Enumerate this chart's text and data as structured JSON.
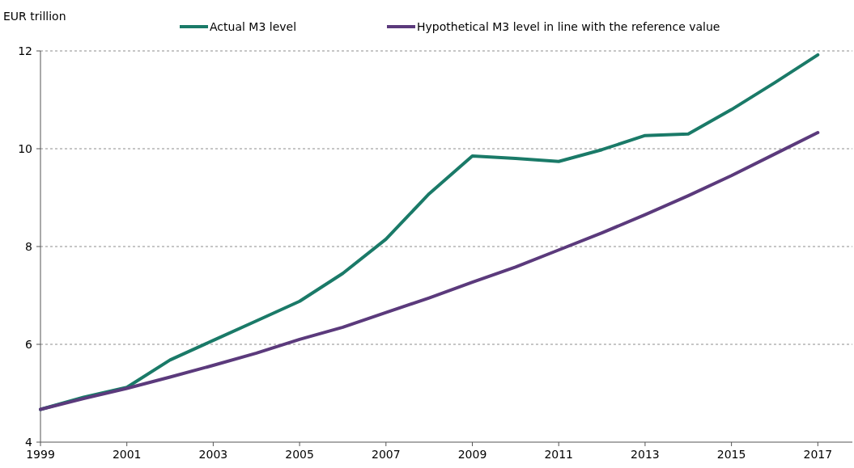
{
  "chart_data": {
    "type": "line",
    "ylabel": "EUR trillion",
    "x": [
      1999,
      2000,
      2001,
      2002,
      2003,
      2004,
      2005,
      2006,
      2007,
      2008,
      2009,
      2010,
      2011,
      2012,
      2013,
      2014,
      2015,
      2016,
      2017
    ],
    "series": [
      {
        "name": "Actual M3 level",
        "color": "#1a7a68",
        "values": [
          4.67,
          4.92,
          5.12,
          5.68,
          6.08,
          6.48,
          6.88,
          7.45,
          8.15,
          9.08,
          9.85,
          9.8,
          9.74,
          9.98,
          10.27,
          10.3,
          10.8,
          11.35,
          11.92
        ]
      },
      {
        "name": "Hypothetical M3 level in line with the reference value",
        "color": "#5b3a7c",
        "values": [
          4.67,
          4.89,
          5.1,
          5.33,
          5.57,
          5.82,
          6.1,
          6.35,
          6.65,
          6.95,
          7.27,
          7.58,
          7.93,
          8.28,
          8.65,
          9.04,
          9.45,
          9.89,
          10.33
        ]
      }
    ],
    "xlim": [
      1999,
      2017.8
    ],
    "xticks": [
      1999,
      2001,
      2003,
      2005,
      2007,
      2009,
      2011,
      2013,
      2015,
      2017
    ],
    "ylim": [
      4,
      12
    ],
    "yticks": [
      4,
      6,
      8,
      10,
      12
    ],
    "grid": "y",
    "legend": "top",
    "line_style": "solid",
    "marker": "none"
  }
}
